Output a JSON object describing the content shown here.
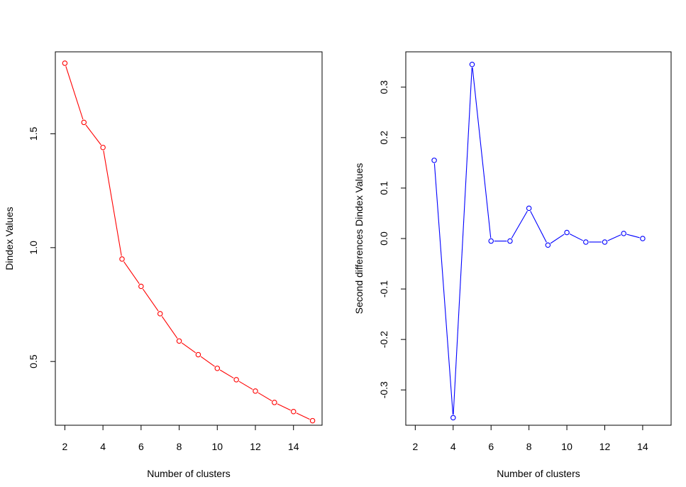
{
  "chart_data": [
    {
      "type": "line",
      "title": "",
      "xlabel": "Number of clusters",
      "ylabel": "Dindex Values",
      "xlim": [
        1.5,
        15.5
      ],
      "ylim": [
        0.22,
        1.86
      ],
      "xticks": [
        2,
        4,
        6,
        8,
        10,
        12,
        14
      ],
      "xtick_labels": [
        "2",
        "4",
        "6",
        "8",
        "10",
        "12",
        "14"
      ],
      "yticks": [
        0.5,
        1.0,
        1.5
      ],
      "ytick_labels": [
        "0.5",
        "1.0",
        "1.5"
      ],
      "grid": false,
      "marker": "circle-open",
      "color": "#ff0000",
      "x": [
        2,
        3,
        4,
        5,
        6,
        7,
        8,
        9,
        10,
        11,
        12,
        13,
        14,
        15
      ],
      "y": [
        1.81,
        1.55,
        1.44,
        0.95,
        0.83,
        0.71,
        0.59,
        0.53,
        0.47,
        0.42,
        0.37,
        0.32,
        0.28,
        0.24
      ]
    },
    {
      "type": "line",
      "title": "",
      "xlabel": "Number of clusters",
      "ylabel": "Second differences Dindex Values",
      "xlim": [
        1.5,
        15.5
      ],
      "ylim": [
        -0.37,
        0.37
      ],
      "xticks": [
        2,
        4,
        6,
        8,
        10,
        12,
        14
      ],
      "xtick_labels": [
        "2",
        "4",
        "6",
        "8",
        "10",
        "12",
        "14"
      ],
      "yticks": [
        -0.3,
        -0.2,
        -0.1,
        0.0,
        0.1,
        0.2,
        0.3
      ],
      "ytick_labels": [
        "-0.3",
        "-0.2",
        "-0.1",
        "0.0",
        "0.1",
        "0.2",
        "0.3"
      ],
      "grid": false,
      "marker": "circle-open",
      "color": "#0000ff",
      "x": [
        3,
        4,
        5,
        6,
        7,
        8,
        9,
        10,
        11,
        12,
        13,
        14
      ],
      "y": [
        0.155,
        -0.355,
        0.345,
        -0.005,
        -0.005,
        0.06,
        -0.013,
        0.012,
        -0.007,
        -0.007,
        0.01,
        0.0
      ]
    }
  ]
}
